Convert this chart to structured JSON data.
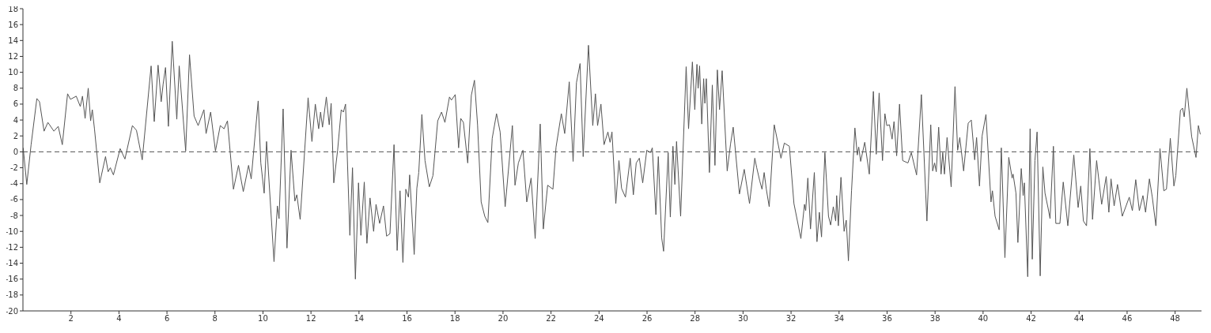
{
  "chart_data": {
    "type": "line",
    "x": [
      0.01,
      0.16,
      0.34,
      0.58,
      0.69,
      0.88,
      1.04,
      1.29,
      1.47,
      1.64,
      1.86,
      1.98,
      2.22,
      2.39,
      2.48,
      2.59,
      2.72,
      2.82,
      2.89,
      2.98,
      3.2,
      3.44,
      3.55,
      3.64,
      3.77,
      4.05,
      4.25,
      4.56,
      4.73,
      4.97,
      5.34,
      5.47,
      5.63,
      5.76,
      5.84,
      5.94,
      6.06,
      6.22,
      6.41,
      6.51,
      6.78,
      6.94,
      7.13,
      7.3,
      7.54,
      7.63,
      7.82,
      8.02,
      8.22,
      8.38,
      8.52,
      8.77,
      8.98,
      9.18,
      9.4,
      9.51,
      9.8,
      9.91,
      10.05,
      10.15,
      10.46,
      10.6,
      10.67,
      10.84,
      11.0,
      11.17,
      11.33,
      11.41,
      11.55,
      11.88,
      12.04,
      12.18,
      12.32,
      12.4,
      12.48,
      12.64,
      12.76,
      12.84,
      12.95,
      13.11,
      13.26,
      13.35,
      13.44,
      13.62,
      13.73,
      13.85,
      13.98,
      14.08,
      14.22,
      14.33,
      14.46,
      14.61,
      14.71,
      14.86,
      15.02,
      15.15,
      15.29,
      15.46,
      15.59,
      15.71,
      15.83,
      15.95,
      16.06,
      16.11,
      16.3,
      16.41,
      16.49,
      16.62,
      16.75,
      16.93,
      17.08,
      17.28,
      17.44,
      17.58,
      17.77,
      17.85,
      18.01,
      18.15,
      18.24,
      18.35,
      18.53,
      18.68,
      18.81,
      18.94,
      19.09,
      19.24,
      19.37,
      19.55,
      19.73,
      19.88,
      20.09,
      20.39,
      20.5,
      20.64,
      20.83,
      20.99,
      21.17,
      21.34,
      21.55,
      21.68,
      21.86,
      22.08,
      22.21,
      22.43,
      22.57,
      22.76,
      22.92,
      23.06,
      23.21,
      23.34,
      23.56,
      23.74,
      23.85,
      23.94,
      24.08,
      24.21,
      24.37,
      24.46,
      24.54,
      24.7,
      24.83,
      24.94,
      25.1,
      25.3,
      25.43,
      25.55,
      25.68,
      25.82,
      25.99,
      26.14,
      26.22,
      26.37,
      26.47,
      26.61,
      26.69,
      26.88,
      26.97,
      27.08,
      27.16,
      27.23,
      27.4,
      27.63,
      27.73,
      27.89,
      27.99,
      28.08,
      28.13,
      28.19,
      28.28,
      28.36,
      28.41,
      28.47,
      28.6,
      28.72,
      28.83,
      28.93,
      29.02,
      29.13,
      29.34,
      29.48,
      29.59,
      29.85,
      30.05,
      30.27,
      30.49,
      30.57,
      30.7,
      30.79,
      30.88,
      30.97,
      31.09,
      31.3,
      31.58,
      31.72,
      31.93,
      32.12,
      32.41,
      32.56,
      32.61,
      32.7,
      32.81,
      32.97,
      33.08,
      33.18,
      33.27,
      33.41,
      33.56,
      33.65,
      33.76,
      33.86,
      33.9,
      33.97,
      34.08,
      34.21,
      34.3,
      34.39,
      34.52,
      34.66,
      34.76,
      34.82,
      34.9,
      35.07,
      35.26,
      35.43,
      35.55,
      35.67,
      35.81,
      35.91,
      35.99,
      36.1,
      36.21,
      36.29,
      36.4,
      36.52,
      36.65,
      36.87,
      37.01,
      37.23,
      37.43,
      37.66,
      37.82,
      37.9,
      37.98,
      38.05,
      38.15,
      38.25,
      38.32,
      38.39,
      38.5,
      38.67,
      38.83,
      38.94,
      39.03,
      39.19,
      39.38,
      39.51,
      39.65,
      39.73,
      39.85,
      39.96,
      40.12,
      40.33,
      40.39,
      40.5,
      40.67,
      40.76,
      40.91,
      41.07,
      41.21,
      41.25,
      41.37,
      41.45,
      41.59,
      41.67,
      41.72,
      41.86,
      41.96,
      42.05,
      42.16,
      42.25,
      42.38,
      42.49,
      42.58,
      42.71,
      42.79,
      42.93,
      43.03,
      43.2,
      43.34,
      43.53,
      43.78,
      43.96,
      44.07,
      44.18,
      44.31,
      44.45,
      44.56,
      44.73,
      44.94,
      45.13,
      45.24,
      45.33,
      45.46,
      45.6,
      45.8,
      46.09,
      46.22,
      46.36,
      46.51,
      46.66,
      46.77,
      46.93,
      47.05,
      47.2,
      47.37,
      47.53,
      47.64,
      47.8,
      47.95,
      48.03,
      48.22,
      48.31,
      48.38,
      48.49,
      48.69,
      48.87,
      48.97,
      49.05
    ],
    "series": [
      {
        "color": "#555555",
        "values": [
          0.5,
          -4.1,
          0.9,
          6.7,
          6.3,
          2.6,
          3.7,
          2.6,
          3.2,
          0.9,
          7.3,
          6.6,
          7.0,
          5.7,
          7.0,
          4.2,
          8.0,
          3.9,
          5.3,
          2.9,
          -3.9,
          -0.6,
          -2.5,
          -2.0,
          -2.9,
          0.4,
          -0.9,
          3.3,
          2.7,
          -1.0,
          10.8,
          3.8,
          10.9,
          6.3,
          8.5,
          10.6,
          3.2,
          13.9,
          4.1,
          10.8,
          0.1,
          12.2,
          4.5,
          3.3,
          5.3,
          2.3,
          5.0,
          0.1,
          3.3,
          2.9,
          3.9,
          -4.7,
          -1.7,
          -5.0,
          -1.7,
          -3.4,
          6.4,
          -1.4,
          -5.2,
          1.3,
          -13.8,
          -6.8,
          -8.4,
          5.4,
          -12.1,
          0.2,
          -6.2,
          -5.4,
          -8.5,
          6.8,
          1.3,
          6.0,
          2.9,
          5.0,
          3.1,
          6.9,
          3.4,
          6.1,
          -3.9,
          0.2,
          5.3,
          5.0,
          6.0,
          -10.5,
          -2.0,
          -16.0,
          -3.9,
          -10.5,
          -3.8,
          -11.5,
          -5.8,
          -10.0,
          -6.6,
          -9.0,
          -6.8,
          -10.6,
          -10.3,
          0.9,
          -12.4,
          -4.9,
          -13.9,
          -4.7,
          -5.7,
          -2.9,
          -12.9,
          -4.6,
          -2.6,
          4.7,
          -1.1,
          -4.4,
          -3.0,
          3.9,
          5.0,
          3.7,
          6.9,
          6.5,
          7.2,
          0.5,
          4.2,
          3.7,
          -1.4,
          7.1,
          9.0,
          3.4,
          -6.3,
          -8.1,
          -8.9,
          1.7,
          4.8,
          2.5,
          -6.9,
          3.3,
          -4.2,
          -1.4,
          0.2,
          -6.3,
          -3.3,
          -10.9,
          3.5,
          -9.7,
          -4.2,
          -4.7,
          0.6,
          4.8,
          2.3,
          8.8,
          -1.2,
          8.7,
          11.1,
          -0.6,
          13.4,
          3.3,
          7.3,
          3.3,
          6.0,
          0.9,
          2.5,
          1.2,
          2.5,
          -6.5,
          -1.1,
          -4.6,
          -5.7,
          -0.8,
          -5.4,
          -1.4,
          -0.8,
          -3.9,
          0.2,
          -0.1,
          0.5,
          -7.9,
          -0.6,
          -10.8,
          -12.5,
          -0.1,
          -8.2,
          0.7,
          -4.1,
          1.3,
          -8.1,
          10.7,
          2.9,
          11.3,
          5.3,
          11.0,
          8.0,
          10.8,
          3.5,
          9.2,
          6.1,
          9.2,
          -2.6,
          8.4,
          -1.7,
          10.3,
          5.3,
          10.2,
          -2.4,
          1.0,
          3.1,
          -5.3,
          -2.2,
          -6.5,
          -0.8,
          -2.0,
          -3.7,
          -4.7,
          -2.6,
          -4.7,
          -6.9,
          3.4,
          -0.8,
          1.1,
          0.7,
          -6.5,
          -10.9,
          -6.6,
          -7.4,
          -3.3,
          -9.7,
          -2.6,
          -11.3,
          -7.6,
          -10.7,
          -0.1,
          -8.1,
          -9.2,
          -6.9,
          -8.7,
          -5.5,
          -9.3,
          -3.2,
          -10.0,
          -8.6,
          -13.7,
          -4.9,
          3.0,
          -0.4,
          0.6,
          -1.2,
          1.2,
          -2.8,
          7.6,
          -0.3,
          7.4,
          -1.1,
          4.8,
          3.3,
          3.4,
          1.6,
          3.8,
          -0.5,
          6.0,
          -1.1,
          -1.4,
          -0.1,
          -2.9,
          7.2,
          -8.7,
          3.4,
          -2.4,
          -1.4,
          -2.5,
          3.1,
          -2.8,
          -0.1,
          -2.8,
          1.8,
          -4.4,
          8.2,
          0.2,
          1.8,
          -2.4,
          3.6,
          4.0,
          -1.0,
          1.8,
          -4.3,
          2.0,
          4.7,
          -6.3,
          -4.9,
          -8.1,
          -9.8,
          0.5,
          -13.3,
          -0.7,
          -3.3,
          -2.8,
          -5.2,
          -11.4,
          -2.1,
          -5.5,
          -3.9,
          -15.7,
          2.9,
          -13.5,
          -1.1,
          2.5,
          -15.6,
          -1.9,
          -5.2,
          -7.1,
          -8.4,
          0.7,
          -9.0,
          -9.0,
          -3.8,
          -9.3,
          -0.4,
          -7.0,
          -4.3,
          -8.7,
          -9.3,
          0.4,
          -8.5,
          -1.1,
          -6.6,
          -3.1,
          -7.6,
          -3.4,
          -6.8,
          -4.1,
          -8.1,
          -5.7,
          -7.4,
          -3.5,
          -7.4,
          -5.5,
          -7.6,
          -3.4,
          -5.7,
          -9.3,
          0.4,
          -4.9,
          -4.7,
          1.7,
          -4.3,
          -3.0,
          5.2,
          5.5,
          4.4,
          8.0,
          1.9,
          -0.7,
          3.3,
          2.2
        ]
      }
    ],
    "xlim": [
      0,
      49.1
    ],
    "xticks": [
      2,
      4,
      6,
      8,
      10,
      12,
      14,
      16,
      18,
      20,
      22,
      24,
      26,
      28,
      30,
      32,
      34,
      36,
      38,
      40,
      42,
      44,
      46,
      48
    ],
    "ylim": [
      -20,
      18
    ],
    "yticks": [
      -20,
      -18,
      -16,
      -14,
      -12,
      -10,
      -8,
      -6,
      -4,
      -2,
      0,
      2,
      4,
      6,
      8,
      10,
      12,
      14,
      16,
      18
    ],
    "ref_lines": [
      {
        "axis": "y",
        "value": 0,
        "color": "#555555",
        "line_style": "dashed"
      }
    ],
    "grid": false,
    "legend": false,
    "marker": "none",
    "line_style": "solid"
  }
}
